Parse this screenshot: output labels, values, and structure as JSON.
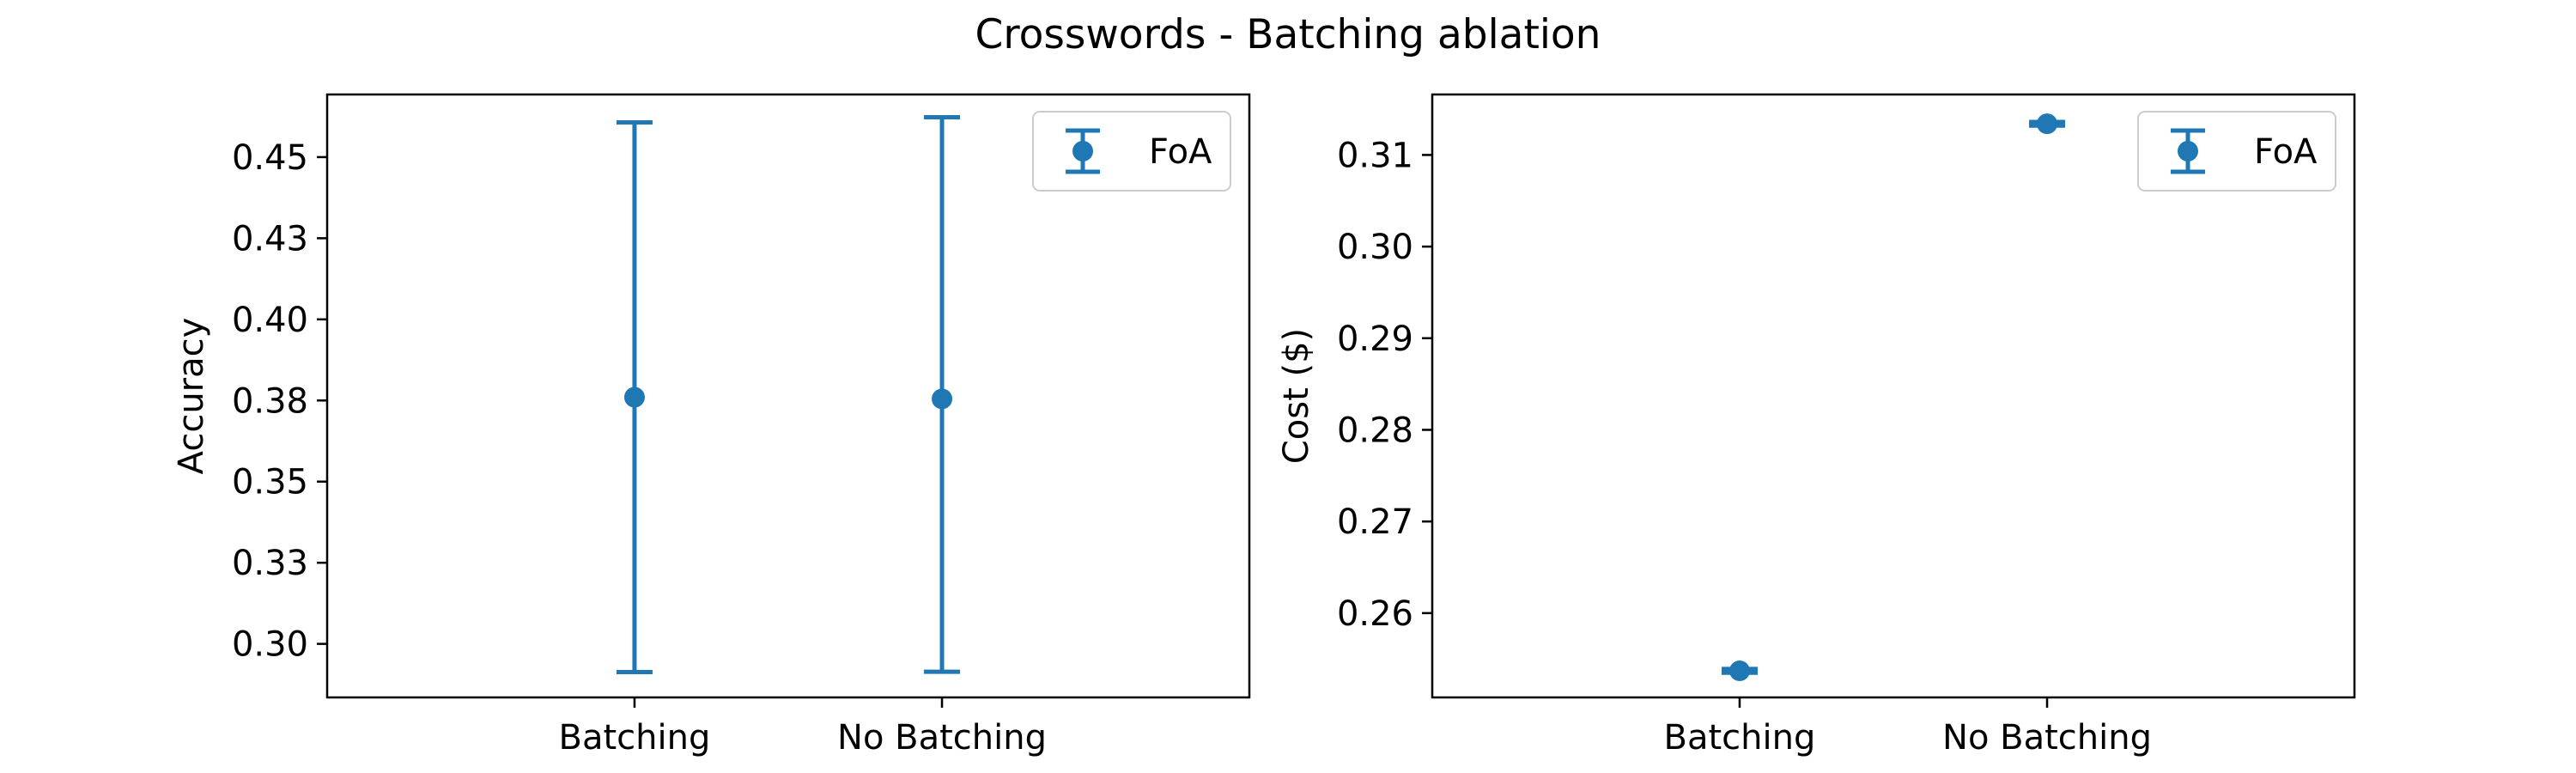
{
  "figure": {
    "title": "Crosswords - Batching ablation"
  },
  "chart_data": [
    {
      "type": "scatter",
      "categories": [
        "Batching",
        "No Batching"
      ],
      "ylabel": "Accuracy",
      "xlabel": "",
      "ylim": [
        0.2835,
        0.4693
      ],
      "yticks": [
        0.3,
        0.325,
        0.35,
        0.375,
        0.4,
        0.425,
        0.45
      ],
      "ytick_labels": [
        "0.30",
        "0.33",
        "0.35",
        "0.38",
        "0.40",
        "0.43",
        "0.45"
      ],
      "grid": false,
      "legend_position": "top-right",
      "series": [
        {
          "name": "FoA",
          "values": [
            0.376,
            0.3755
          ],
          "error": [
            [
              0.2913,
              0.4607
            ],
            [
              0.2914,
              0.4623
            ]
          ]
        }
      ],
      "color": "#1f77b4"
    },
    {
      "type": "scatter",
      "categories": [
        "Batching",
        "No Batching"
      ],
      "ylabel": "Cost ($)",
      "xlabel": "",
      "ylim": [
        0.2508,
        0.3166
      ],
      "yticks": [
        0.26,
        0.27,
        0.28,
        0.29,
        0.3,
        0.31
      ],
      "ytick_labels": [
        "0.26",
        "0.27",
        "0.28",
        "0.29",
        "0.30",
        "0.31"
      ],
      "grid": false,
      "legend_position": "top-right",
      "series": [
        {
          "name": "FoA",
          "values": [
            0.2537,
            0.3134
          ],
          "error": [
            [
              0.2535,
              0.2539
            ],
            [
              0.3132,
              0.3136
            ]
          ]
        }
      ],
      "color": "#1f77b4"
    }
  ]
}
